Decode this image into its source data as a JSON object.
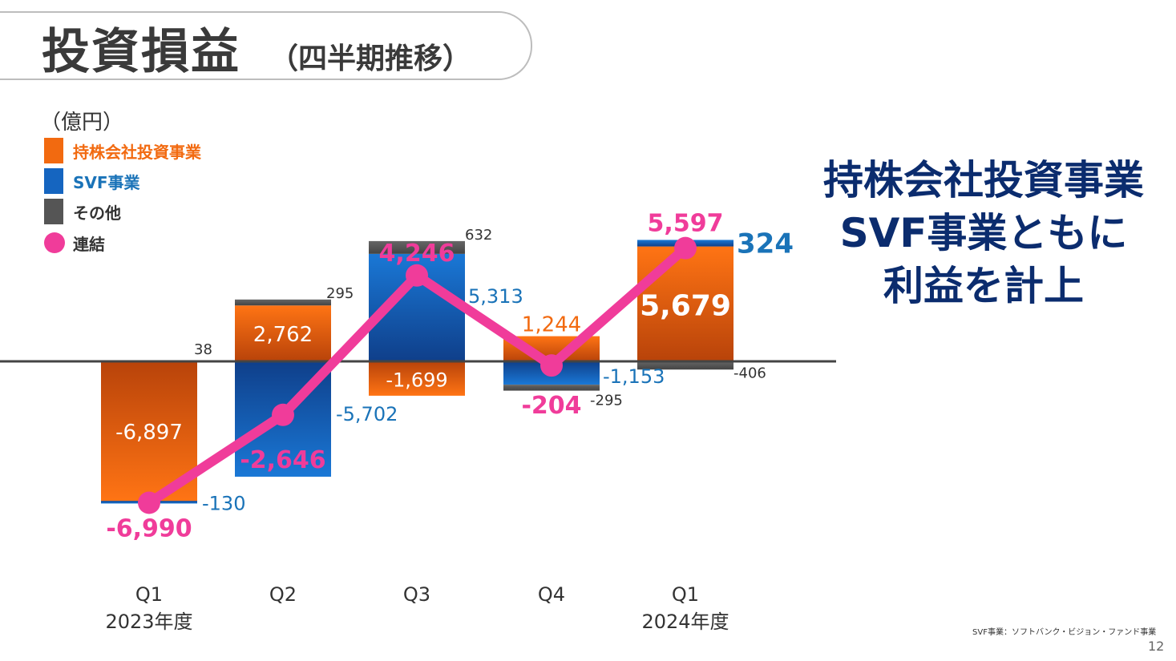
{
  "title": "投資損益",
  "subtitle": "（四半期推移）",
  "unit": "（億円）",
  "legend": [
    {
      "label": "持株会社投資事業",
      "color": "#f26a10"
    },
    {
      "label": "SVF事業",
      "color": "#1565c0"
    },
    {
      "label": "その他",
      "color": "#555555"
    },
    {
      "label": "連結",
      "color": "#f03c9a"
    }
  ],
  "headline": {
    "line1": "持株会社投資事業",
    "line2": "SVF事業ともに",
    "line3": "利益を計上"
  },
  "footnote": "SVF事業：ソフトバンク・ビジョン・ファンド事業",
  "page_number": "12",
  "colors": {
    "holding": "#f26a10",
    "svf": "#1565c0",
    "other": "#555555",
    "consolidated": "#f03c9a",
    "svf_text": "#1a73b8",
    "headline": "#0b2c6e"
  },
  "chart_data": {
    "type": "bar",
    "stacked": true,
    "categories": [
      "Q1",
      "Q2",
      "Q3",
      "Q4",
      "Q1"
    ],
    "category_sublabels": [
      "2023年度",
      "",
      "",
      "",
      "2024年度"
    ],
    "series": [
      {
        "name": "持株会社投資事業",
        "values": [
          -6897,
          2762,
          -1699,
          1244,
          5679
        ],
        "labels": [
          "-6,897",
          "2,762",
          "-1,699",
          "1,244",
          "5,679"
        ]
      },
      {
        "name": "SVF事業",
        "values": [
          -130,
          -5702,
          5313,
          -1153,
          324
        ],
        "labels": [
          "-130",
          "-5,702",
          "5,313",
          "-1,153",
          "324"
        ]
      },
      {
        "name": "その他",
        "values": [
          38,
          295,
          632,
          -295,
          -406
        ],
        "labels": [
          "38",
          "295",
          "632",
          "-295",
          "-406"
        ]
      }
    ],
    "line": {
      "name": "連結",
      "values": [
        -6990,
        -2646,
        4246,
        -204,
        5597
      ],
      "labels": [
        "-6,990",
        "-2,646",
        "4,246",
        "-204",
        "5,597"
      ]
    },
    "ylim": [
      -7400,
      6200
    ]
  }
}
